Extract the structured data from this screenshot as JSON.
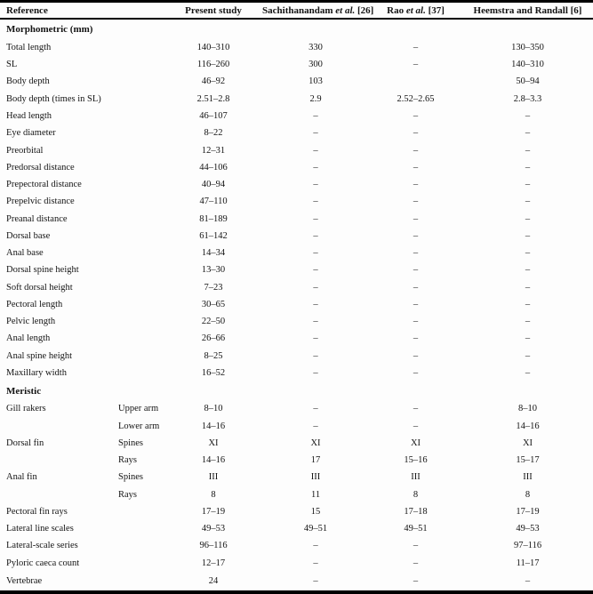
{
  "colors": {
    "rule": "#000000",
    "text": "#141414",
    "background": "#fdfdfd"
  },
  "table": {
    "header": {
      "reference": "Reference",
      "present_study": "Present study",
      "sachithanandam": {
        "pre": "Sachithanandam",
        "italic": "et al.",
        "post": "[26]"
      },
      "rao": {
        "pre": "Rao",
        "italic": "et al.",
        "post": "[37]"
      },
      "heemstra": "Heemstra and Randall [6]"
    },
    "rows": [
      {
        "type": "section",
        "label": "Morphometric (mm)"
      },
      {
        "type": "data",
        "label": "Total length",
        "sub": "",
        "values": [
          "140–310",
          "330",
          "–",
          "130–350"
        ]
      },
      {
        "type": "data",
        "label": "SL",
        "sub": "",
        "values": [
          "116–260",
          "300",
          "–",
          "140–310"
        ]
      },
      {
        "type": "data",
        "label": "Body depth",
        "sub": "",
        "values": [
          "46–92",
          "103",
          "",
          "50–94"
        ]
      },
      {
        "type": "data",
        "label": "Body depth (times in SL)",
        "sub": "",
        "values": [
          "2.51–2.8",
          "2.9",
          "2.52–2.65",
          "2.8–3.3"
        ]
      },
      {
        "type": "data",
        "label": "Head length",
        "sub": "",
        "values": [
          "46–107",
          "–",
          "–",
          "–"
        ]
      },
      {
        "type": "data",
        "label": "Eye diameter",
        "sub": "",
        "values": [
          "8–22",
          "–",
          "–",
          "–"
        ]
      },
      {
        "type": "data",
        "label": "Preorbital",
        "sub": "",
        "values": [
          "12–31",
          "–",
          "–",
          "–"
        ]
      },
      {
        "type": "data",
        "label": "Predorsal distance",
        "sub": "",
        "values": [
          "44–106",
          "–",
          "–",
          "–"
        ]
      },
      {
        "type": "data",
        "label": "Prepectoral distance",
        "sub": "",
        "values": [
          "40–94",
          "–",
          "–",
          "–"
        ]
      },
      {
        "type": "data",
        "label": "Prepelvic distance",
        "sub": "",
        "values": [
          "47–110",
          "–",
          "–",
          "–"
        ]
      },
      {
        "type": "data",
        "label": "Preanal distance",
        "sub": "",
        "values": [
          "81–189",
          "–",
          "–",
          "–"
        ]
      },
      {
        "type": "data",
        "label": "Dorsal base",
        "sub": "",
        "values": [
          "61–142",
          "–",
          "–",
          "–"
        ]
      },
      {
        "type": "data",
        "label": "Anal base",
        "sub": "",
        "values": [
          "14–34",
          "–",
          "–",
          "–"
        ]
      },
      {
        "type": "data",
        "label": "Dorsal spine height",
        "sub": "",
        "values": [
          "13–30",
          "–",
          "–",
          "–"
        ]
      },
      {
        "type": "data",
        "label": "Soft dorsal height",
        "sub": "",
        "values": [
          "7–23",
          "–",
          "–",
          "–"
        ]
      },
      {
        "type": "data",
        "label": "Pectoral length",
        "sub": "",
        "values": [
          "30–65",
          "–",
          "–",
          "–"
        ]
      },
      {
        "type": "data",
        "label": "Pelvic length",
        "sub": "",
        "values": [
          "22–50",
          "–",
          "–",
          "–"
        ]
      },
      {
        "type": "data",
        "label": "Anal length",
        "sub": "",
        "values": [
          "26–66",
          "–",
          "–",
          "–"
        ]
      },
      {
        "type": "data",
        "label": "Anal spine height",
        "sub": "",
        "values": [
          "8–25",
          "–",
          "–",
          "–"
        ]
      },
      {
        "type": "data",
        "label": "Maxillary width",
        "sub": "",
        "values": [
          "16–52",
          "–",
          "–",
          "–"
        ]
      },
      {
        "type": "section",
        "label": "Meristic"
      },
      {
        "type": "data",
        "label": "Gill rakers",
        "sub": "Upper arm",
        "values": [
          "8–10",
          "–",
          "–",
          "8–10"
        ]
      },
      {
        "type": "data",
        "label": "",
        "sub": "Lower arm",
        "values": [
          "14–16",
          "–",
          "–",
          "14–16"
        ]
      },
      {
        "type": "data",
        "label": "Dorsal fin",
        "sub": "Spines",
        "values": [
          "XI",
          "XI",
          "XI",
          "XI"
        ]
      },
      {
        "type": "data",
        "label": "",
        "sub": "Rays",
        "values": [
          "14–16",
          "17",
          "15–16",
          "15–17"
        ]
      },
      {
        "type": "data",
        "label": "Anal fin",
        "sub": "Spines",
        "values": [
          "III",
          "III",
          "III",
          "III"
        ]
      },
      {
        "type": "data",
        "label": "",
        "sub": "Rays",
        "values": [
          "8",
          "11",
          "8",
          "8"
        ]
      },
      {
        "type": "data",
        "label": "Pectoral fin rays",
        "sub": "",
        "values": [
          "17–19",
          "15",
          "17–18",
          "17–19"
        ]
      },
      {
        "type": "data",
        "label": "Lateral line scales",
        "sub": "",
        "values": [
          "49–53",
          "49–51",
          "49–51",
          "49–53"
        ]
      },
      {
        "type": "data",
        "label": "Lateral-scale series",
        "sub": "",
        "values": [
          "96–116",
          "–",
          "–",
          "97–116"
        ]
      },
      {
        "type": "data",
        "label": "Pyloric caeca count",
        "sub": "",
        "values": [
          "12–17",
          "–",
          "–",
          "11–17"
        ]
      },
      {
        "type": "data",
        "label": "Vertebrae",
        "sub": "",
        "values": [
          "24",
          "–",
          "–",
          "–"
        ]
      }
    ]
  }
}
